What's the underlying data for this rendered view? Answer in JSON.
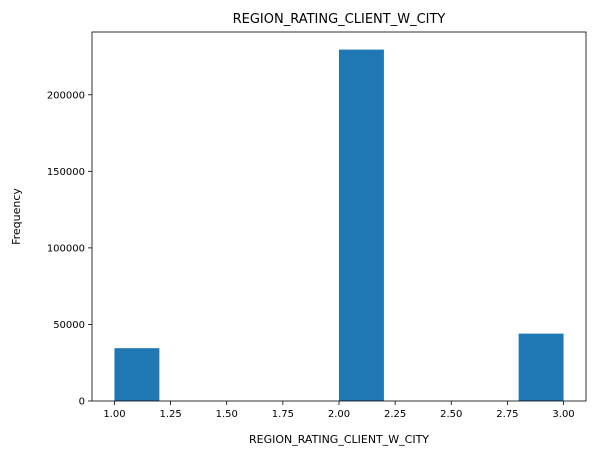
{
  "chart_data": {
    "type": "bar",
    "title": "REGION_RATING_CLIENT_W_CITY",
    "xlabel": "REGION_RATING_CLIENT_W_CITY",
    "ylabel": "Frequency",
    "color": "#1f77b4",
    "grid": false,
    "bins": [
      {
        "x0": 1.0,
        "x1": 1.2,
        "count": 34500
      },
      {
        "x0": 1.2,
        "x1": 1.4,
        "count": 0
      },
      {
        "x0": 1.4,
        "x1": 1.6,
        "count": 0
      },
      {
        "x0": 1.6,
        "x1": 1.8,
        "count": 0
      },
      {
        "x0": 1.8,
        "x1": 2.0,
        "count": 0
      },
      {
        "x0": 2.0,
        "x1": 2.2,
        "count": 229500
      },
      {
        "x0": 2.2,
        "x1": 2.4,
        "count": 0
      },
      {
        "x0": 2.4,
        "x1": 2.6,
        "count": 0
      },
      {
        "x0": 2.6,
        "x1": 2.8,
        "count": 0
      },
      {
        "x0": 2.8,
        "x1": 3.0,
        "count": 44000
      }
    ],
    "xlim": [
      0.9,
      3.1
    ],
    "ylim": [
      0,
      241000
    ],
    "xticks": [
      1.0,
      1.25,
      1.5,
      1.75,
      2.0,
      2.25,
      2.5,
      2.75,
      3.0
    ],
    "xtick_labels": [
      "1.00",
      "1.25",
      "1.50",
      "1.75",
      "2.00",
      "2.25",
      "2.50",
      "2.75",
      "3.00"
    ],
    "yticks": [
      0,
      50000,
      100000,
      150000,
      200000
    ],
    "ytick_labels": [
      "0",
      "50000",
      "100000",
      "150000",
      "200000"
    ]
  }
}
